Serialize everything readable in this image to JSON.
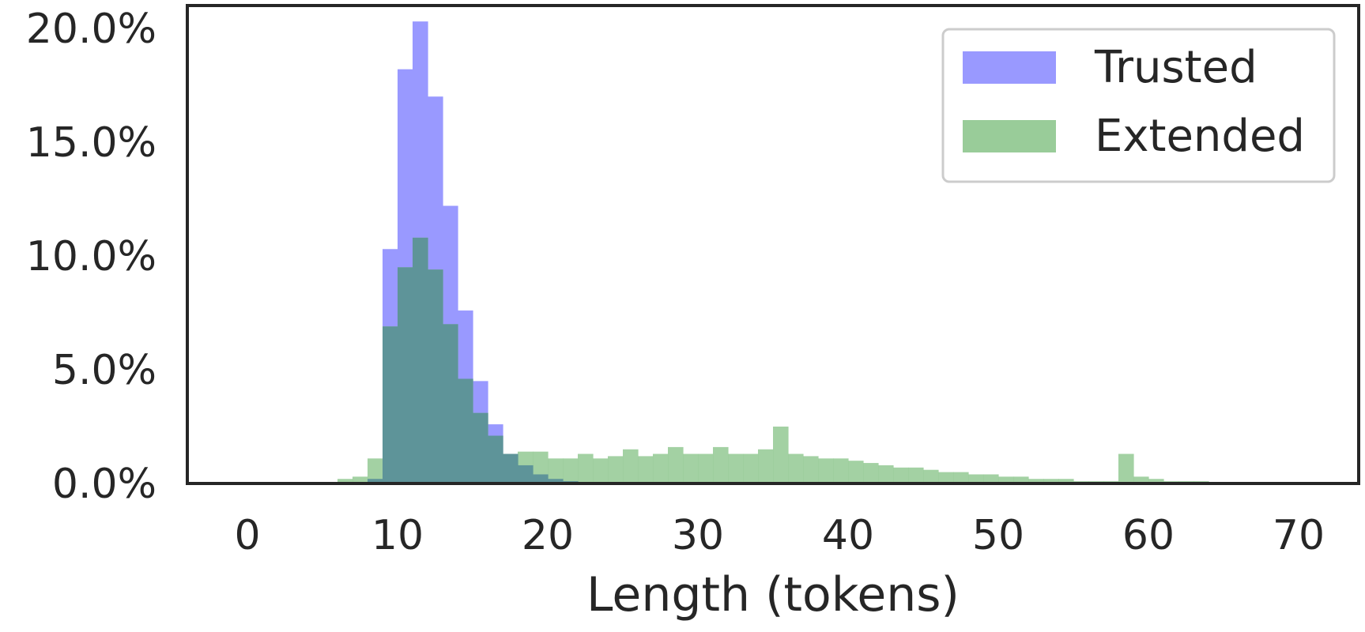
{
  "chart_data": {
    "type": "histogram",
    "xlabel": "Length (tokens)",
    "ylabel": "",
    "xlim": [
      -4,
      74
    ],
    "ylim": [
      0,
      0.21
    ],
    "xticks": [
      0,
      10,
      20,
      30,
      40,
      50,
      60,
      70
    ],
    "xtick_labels": [
      "0",
      "10",
      "20",
      "30",
      "40",
      "50",
      "60",
      "70"
    ],
    "yticks": [
      0,
      0.05,
      0.1,
      0.15,
      0.2
    ],
    "ytick_labels": [
      "0.0%",
      "5.0%",
      "10.0%",
      "15.0%",
      "20.0%"
    ],
    "grid": false,
    "legend_position": "top-right",
    "bin_width": 1,
    "series": [
      {
        "name": "Trusted",
        "color": "#9999ff",
        "bin_starts": [
          6,
          7,
          8,
          9,
          10,
          11,
          12,
          13,
          14,
          15,
          16,
          17,
          18,
          19,
          20,
          21,
          22
        ],
        "values": [
          0,
          0,
          0.002,
          0.103,
          0.182,
          0.203,
          0.17,
          0.122,
          0.076,
          0.045,
          0.026,
          0.013,
          0.008,
          0.004,
          0.002,
          0.001,
          0
        ]
      },
      {
        "name": "Extended",
        "color": "#99cc99",
        "bin_starts": [
          5,
          6,
          7,
          8,
          9,
          10,
          11,
          12,
          13,
          14,
          15,
          16,
          17,
          18,
          19,
          20,
          21,
          22,
          23,
          24,
          25,
          26,
          27,
          28,
          29,
          30,
          31,
          32,
          33,
          34,
          35,
          36,
          37,
          38,
          39,
          40,
          41,
          42,
          43,
          44,
          45,
          46,
          47,
          48,
          49,
          50,
          51,
          52,
          53,
          54,
          55,
          56,
          57,
          58,
          59,
          60,
          61,
          62,
          63,
          64,
          65,
          66,
          67,
          68,
          69,
          70
        ],
        "values": [
          0,
          0.002,
          0.003,
          0.011,
          0.069,
          0.095,
          0.108,
          0.094,
          0.07,
          0.046,
          0.031,
          0.021,
          0.013,
          0.014,
          0.014,
          0.011,
          0.011,
          0.013,
          0.011,
          0.012,
          0.015,
          0.012,
          0.013,
          0.016,
          0.013,
          0.013,
          0.016,
          0.013,
          0.013,
          0.015,
          0.025,
          0.013,
          0.012,
          0.011,
          0.011,
          0.01,
          0.009,
          0.008,
          0.007,
          0.007,
          0.006,
          0.005,
          0.005,
          0.004,
          0.004,
          0.003,
          0.003,
          0.002,
          0.002,
          0.002,
          0.001,
          0.001,
          0.001,
          0.013,
          0.003,
          0.002,
          0.001,
          0.001,
          0.001,
          0.0005,
          0.0005,
          0.0005,
          0.0005,
          0.0005,
          0.0005,
          0
        ]
      }
    ]
  }
}
